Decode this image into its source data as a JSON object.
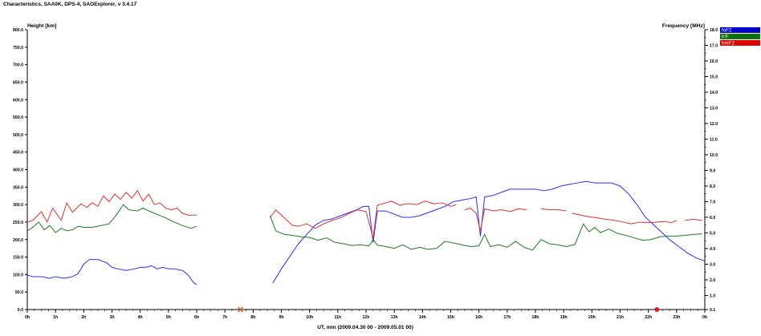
{
  "window": {
    "title": "Characteristics, SAA0K, DPS-4, SAOExplorer, v 3.4.17"
  },
  "chart_data": {
    "type": "line",
    "title": "",
    "xlabel": "UT, min (2009.04.30 00 - 2009.05.01 00)",
    "ylabel_left": "Height [km]",
    "ylabel_right": "Frequency [MHz]",
    "xlim": [
      0,
      24
    ],
    "ylim_left": [
      0,
      800
    ],
    "ylim_right": [
      0.1,
      18.0
    ],
    "x_ticks": [
      "0h",
      "1h",
      "2h",
      "3h",
      "4h",
      "5h",
      "6h",
      "7h",
      "8h",
      "9h",
      "10h",
      "11h",
      "12h",
      "13h",
      "14h",
      "15h",
      "16h",
      "17h",
      "18h",
      "19h",
      "20h",
      "21h",
      "22h",
      "23h",
      "0h"
    ],
    "y_ticks_left": [
      "0.0",
      "50.0",
      "100.0",
      "150.0",
      "200.0",
      "250.0",
      "300.0",
      "350.0",
      "400.0",
      "450.0",
      "500.0",
      "550.0",
      "600.0",
      "650.0",
      "700.0",
      "750.0",
      "800.0"
    ],
    "y_ticks_right": [
      "0.1",
      "1.0",
      "2.0",
      "3.0",
      "4.0",
      "5.0",
      "6.0",
      "7.0",
      "8.0",
      "9.0",
      "10.0",
      "11.0",
      "12.0",
      "13.0",
      "14.0",
      "15.0",
      "16.0",
      "17.0",
      "18.0"
    ],
    "legend_position": "top-right",
    "grid": false,
    "series": [
      {
        "name": "foF2",
        "axis": "right",
        "color": "#2b2bff",
        "legend_color": "#0000cc",
        "segments": [
          [
            [
              0,
              2.3
            ],
            [
              0.2,
              2.2
            ],
            [
              0.5,
              2.2
            ],
            [
              0.8,
              2.1
            ],
            [
              1.0,
              2.2
            ],
            [
              1.3,
              2.1
            ],
            [
              1.6,
              2.2
            ],
            [
              1.8,
              2.4
            ],
            [
              2.0,
              3.0
            ],
            [
              2.2,
              3.3
            ],
            [
              2.5,
              3.3
            ],
            [
              2.8,
              3.1
            ],
            [
              3.0,
              2.8
            ],
            [
              3.2,
              2.7
            ],
            [
              3.5,
              2.6
            ],
            [
              3.8,
              2.7
            ],
            [
              4.0,
              2.8
            ],
            [
              4.2,
              2.8
            ],
            [
              4.4,
              2.9
            ],
            [
              4.6,
              2.7
            ],
            [
              4.8,
              2.8
            ],
            [
              5.0,
              2.7
            ],
            [
              5.2,
              2.7
            ],
            [
              5.5,
              2.6
            ],
            [
              5.7,
              2.3
            ],
            [
              5.9,
              1.8
            ],
            [
              6.0,
              1.7
            ]
          ],
          [
            [
              8.7,
              1.8
            ],
            [
              9.0,
              2.7
            ],
            [
              9.3,
              3.5
            ],
            [
              9.6,
              4.3
            ],
            [
              9.9,
              4.9
            ],
            [
              10.2,
              5.5
            ],
            [
              10.5,
              5.8
            ],
            [
              10.8,
              5.9
            ],
            [
              11.1,
              6.1
            ],
            [
              11.4,
              6.3
            ],
            [
              11.7,
              6.5
            ],
            [
              11.9,
              6.7
            ],
            [
              12.1,
              6.7
            ],
            [
              12.25,
              4.4
            ],
            [
              12.4,
              6.4
            ],
            [
              12.7,
              6.4
            ],
            [
              13.0,
              6.2
            ],
            [
              13.3,
              6.0
            ],
            [
              13.6,
              6.0
            ],
            [
              13.9,
              6.1
            ],
            [
              14.2,
              6.3
            ],
            [
              14.5,
              6.5
            ],
            [
              14.8,
              6.7
            ],
            [
              15.1,
              7.0
            ],
            [
              15.4,
              7.1
            ],
            [
              15.7,
              7.2
            ],
            [
              15.9,
              7.3
            ],
            [
              16.05,
              4.8
            ],
            [
              16.2,
              7.3
            ],
            [
              16.5,
              7.4
            ],
            [
              16.8,
              7.6
            ],
            [
              17.1,
              7.8
            ],
            [
              17.4,
              7.8
            ],
            [
              17.7,
              7.8
            ],
            [
              18.0,
              7.8
            ],
            [
              18.3,
              7.7
            ],
            [
              18.6,
              7.8
            ],
            [
              18.9,
              8.0
            ],
            [
              19.2,
              8.1
            ],
            [
              19.5,
              8.2
            ],
            [
              19.8,
              8.3
            ],
            [
              20.1,
              8.2
            ],
            [
              20.4,
              8.2
            ],
            [
              20.7,
              8.2
            ],
            [
              21.0,
              8.0
            ],
            [
              21.3,
              7.5
            ],
            [
              21.6,
              6.8
            ],
            [
              21.9,
              6.0
            ],
            [
              22.2,
              5.5
            ],
            [
              22.5,
              5.0
            ],
            [
              22.8,
              4.5
            ],
            [
              23.1,
              4.1
            ],
            [
              23.4,
              3.7
            ],
            [
              23.7,
              3.4
            ],
            [
              24.0,
              3.2
            ]
          ]
        ]
      },
      {
        "name": "h'F",
        "axis": "left",
        "color": "#1f7a1f",
        "legend_color": "#107010",
        "segments": [
          [
            [
              0,
              225
            ],
            [
              0.2,
              235
            ],
            [
              0.4,
              250
            ],
            [
              0.6,
              228
            ],
            [
              0.8,
              240
            ],
            [
              1.0,
              220
            ],
            [
              1.2,
              232
            ],
            [
              1.4,
              225
            ],
            [
              1.6,
              228
            ],
            [
              1.8,
              238
            ],
            [
              2.0,
              235
            ],
            [
              2.3,
              235
            ],
            [
              2.6,
              240
            ],
            [
              2.9,
              245
            ],
            [
              3.2,
              275
            ],
            [
              3.4,
              300
            ],
            [
              3.6,
              285
            ],
            [
              3.9,
              282
            ],
            [
              4.1,
              290
            ],
            [
              4.3,
              282
            ],
            [
              4.6,
              272
            ],
            [
              4.9,
              262
            ],
            [
              5.2,
              250
            ],
            [
              5.5,
              240
            ],
            [
              5.8,
              232
            ],
            [
              6.0,
              238
            ]
          ],
          [
            [
              8.6,
              268
            ],
            [
              8.8,
              225
            ],
            [
              9.1,
              215
            ],
            [
              9.4,
              212
            ],
            [
              9.7,
              208
            ],
            [
              10.0,
              206
            ],
            [
              10.3,
              198
            ],
            [
              10.6,
              205
            ],
            [
              10.9,
              192
            ],
            [
              11.2,
              188
            ],
            [
              11.5,
              183
            ],
            [
              11.8,
              185
            ],
            [
              12.1,
              182
            ],
            [
              12.25,
              200
            ],
            [
              12.4,
              184
            ],
            [
              12.7,
              180
            ],
            [
              13.0,
              175
            ],
            [
              13.3,
              185
            ],
            [
              13.6,
              172
            ],
            [
              13.9,
              178
            ],
            [
              14.2,
              172
            ],
            [
              14.5,
              175
            ],
            [
              14.8,
              195
            ],
            [
              15.1,
              190
            ],
            [
              15.4,
              185
            ],
            [
              15.7,
              180
            ],
            [
              16.0,
              182
            ],
            [
              16.2,
              215
            ],
            [
              16.4,
              180
            ],
            [
              16.7,
              185
            ],
            [
              17.0,
              178
            ],
            [
              17.3,
              195
            ],
            [
              17.6,
              178
            ],
            [
              17.9,
              170
            ],
            [
              18.2,
              200
            ],
            [
              18.5,
              188
            ],
            [
              18.8,
              185
            ],
            [
              19.1,
              180
            ],
            [
              19.4,
              186
            ],
            [
              19.7,
              245
            ],
            [
              19.9,
              222
            ],
            [
              20.1,
              235
            ],
            [
              20.3,
              220
            ],
            [
              20.6,
              230
            ],
            [
              20.9,
              218
            ],
            [
              21.2,
              212
            ],
            [
              21.5,
              205
            ],
            [
              21.8,
              198
            ],
            [
              22.1,
              200
            ],
            [
              22.4,
              208
            ],
            [
              22.7,
              210
            ],
            [
              23.0,
              210
            ],
            [
              23.3,
              212
            ],
            [
              23.6,
              215
            ],
            [
              23.9,
              216
            ]
          ]
        ]
      },
      {
        "name": "hmF2",
        "axis": "left",
        "color": "#e03030",
        "legend_color": "#e00000",
        "segments": [
          [
            [
              0,
              250
            ],
            [
              0.2,
              255
            ],
            [
              0.5,
              280
            ],
            [
              0.7,
              250
            ],
            [
              0.9,
              290
            ],
            [
              1.2,
              255
            ],
            [
              1.4,
              305
            ],
            [
              1.6,
              278
            ],
            [
              1.9,
              302
            ],
            [
              2.1,
              292
            ],
            [
              2.3,
              305
            ],
            [
              2.5,
              295
            ],
            [
              2.7,
              325
            ],
            [
              2.9,
              308
            ],
            [
              3.1,
              330
            ],
            [
              3.3,
              315
            ],
            [
              3.5,
              335
            ],
            [
              3.7,
              318
            ],
            [
              3.9,
              340
            ],
            [
              4.1,
              310
            ],
            [
              4.3,
              330
            ],
            [
              4.5,
              300
            ],
            [
              4.7,
              305
            ],
            [
              4.9,
              290
            ],
            [
              5.1,
              285
            ],
            [
              5.3,
              290
            ],
            [
              5.5,
              275
            ],
            [
              5.7,
              270
            ],
            [
              6.0,
              270
            ]
          ],
          [
            [
              8.6,
              262
            ],
            [
              8.8,
              285
            ],
            [
              9.0,
              270
            ],
            [
              9.2,
              255
            ],
            [
              9.4,
              240
            ],
            [
              9.6,
              238
            ],
            [
              9.9,
              245
            ],
            [
              10.2,
              232
            ],
            [
              10.5,
              245
            ],
            [
              10.8,
              255
            ],
            [
              11.1,
              262
            ],
            [
              11.4,
              275
            ],
            [
              11.7,
              285
            ],
            [
              12.0,
              280
            ],
            [
              12.25,
              205
            ],
            [
              12.4,
              298
            ],
            [
              12.7,
              305
            ],
            [
              12.9,
              310
            ],
            [
              13.2,
              298
            ],
            [
              13.5,
              303
            ],
            [
              13.8,
              300
            ],
            [
              14.1,
              310
            ],
            [
              14.4,
              302
            ],
            [
              14.7,
              305
            ],
            [
              15.0,
              295
            ],
            [
              15.2,
              300
            ]
          ],
          [
            [
              15.5,
              285
            ],
            [
              15.7,
              290
            ],
            [
              15.9,
              275
            ],
            [
              16.05,
              225
            ],
            [
              16.2,
              288
            ],
            [
              16.5,
              282
            ],
            [
              16.8,
              285
            ],
            [
              17.1,
              280
            ],
            [
              17.4,
              288
            ],
            [
              17.7,
              285
            ]
          ],
          [
            [
              18.2,
              288
            ],
            [
              18.5,
              285
            ],
            [
              18.8,
              285
            ],
            [
              19.1,
              282
            ]
          ],
          [
            [
              19.3,
              275
            ],
            [
              19.6,
              270
            ],
            [
              19.9,
              265
            ],
            [
              20.2,
              262
            ],
            [
              20.5,
              258
            ],
            [
              20.8,
              255
            ],
            [
              21.1,
              250
            ],
            [
              21.4,
              245
            ],
            [
              21.7,
              250
            ],
            [
              22.0,
              248
            ],
            [
              22.3,
              250
            ],
            [
              22.6,
              252
            ],
            [
              22.8,
              248
            ],
            [
              23.0,
              255
            ]
          ],
          [
            [
              23.3,
              255
            ],
            [
              23.6,
              258
            ],
            [
              23.9,
              255
            ]
          ]
        ]
      }
    ],
    "markers": [
      {
        "x": 7.55,
        "shape": "x",
        "color": "#e06020"
      },
      {
        "x": 22.3,
        "shape": "dot",
        "color": "#e02020"
      }
    ]
  }
}
